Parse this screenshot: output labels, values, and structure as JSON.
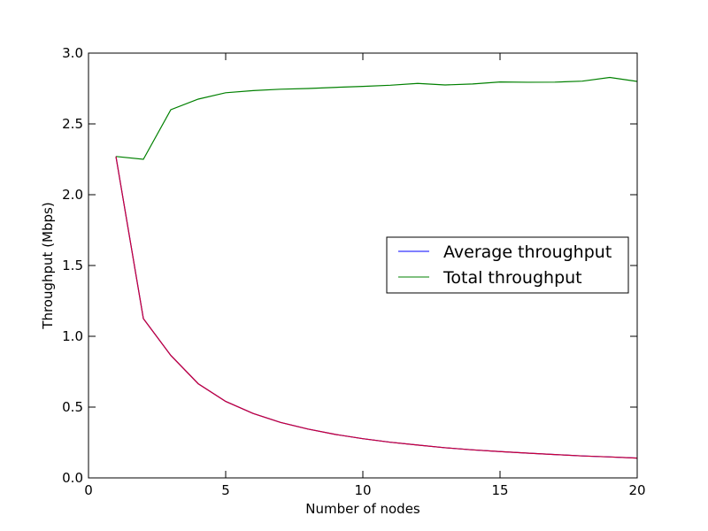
{
  "chart_data": {
    "type": "line",
    "title": "",
    "xlabel": "Number of nodes",
    "ylabel": "Throughput (Mbps)",
    "xlim": [
      0,
      20
    ],
    "ylim": [
      0,
      3.0
    ],
    "x_ticks": [
      "0",
      "5",
      "10",
      "15",
      "20"
    ],
    "y_ticks": [
      "0.0",
      "0.5",
      "1.0",
      "1.5",
      "2.0",
      "2.5",
      "3.0"
    ],
    "grid": false,
    "legend_position": "right",
    "series": [
      {
        "name": "Average throughput",
        "color": "#0000ff",
        "x": [
          1,
          2,
          3,
          4,
          5,
          6,
          7,
          8,
          9,
          10,
          11,
          12,
          13,
          14,
          15,
          16,
          17,
          18,
          19,
          20
        ],
        "y": [
          2.27,
          1.125,
          0.865,
          0.665,
          0.54,
          0.455,
          0.392,
          0.345,
          0.307,
          0.277,
          0.252,
          0.232,
          0.213,
          0.198,
          0.186,
          0.175,
          0.165,
          0.155,
          0.148,
          0.14
        ]
      },
      {
        "name": "Total throughput",
        "color": "#008000",
        "x": [
          1,
          2,
          3,
          4,
          5,
          6,
          7,
          8,
          9,
          10,
          11,
          12,
          13,
          14,
          15,
          16,
          17,
          18,
          19,
          20
        ],
        "y": [
          2.27,
          2.25,
          2.6,
          2.675,
          2.72,
          2.735,
          2.745,
          2.75,
          2.758,
          2.765,
          2.773,
          2.786,
          2.775,
          2.782,
          2.796,
          2.794,
          2.795,
          2.802,
          2.828,
          2.8
        ]
      }
    ],
    "overlay_line": {
      "color": "#cc0033",
      "x": [
        1,
        2,
        3,
        4,
        5,
        6,
        7,
        8,
        9,
        10,
        11,
        12,
        13,
        14,
        15,
        16,
        17,
        18,
        19,
        20
      ],
      "y": [
        2.27,
        1.125,
        0.865,
        0.665,
        0.54,
        0.455,
        0.392,
        0.345,
        0.307,
        0.277,
        0.252,
        0.232,
        0.213,
        0.198,
        0.186,
        0.175,
        0.165,
        0.155,
        0.148,
        0.14
      ]
    }
  }
}
